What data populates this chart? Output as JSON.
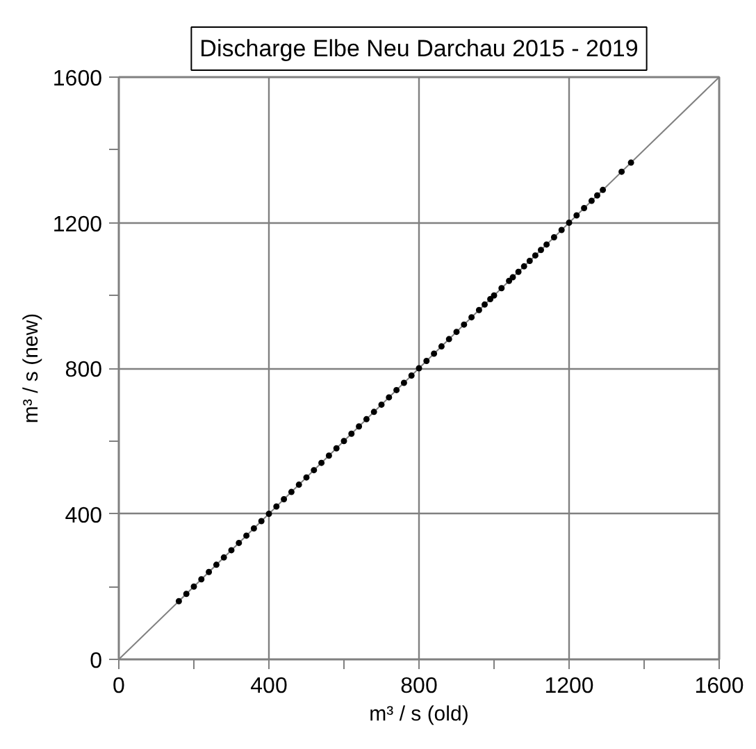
{
  "chart_data": {
    "type": "scatter",
    "title": "Discharge Elbe Neu Darchau 2015 - 2019",
    "xlabel": "m³ / s (old)",
    "ylabel": "m³ / s (new)",
    "xlim": [
      0,
      1600
    ],
    "ylim": [
      0,
      1600
    ],
    "xticks": [
      0,
      {
        "value": 200,
        "label": null
      },
      400,
      {
        "value": 600,
        "label": null
      },
      800,
      {
        "value": 1000,
        "label": null
      },
      1200,
      {
        "value": 1400,
        "label": null
      },
      1600
    ],
    "yticks": [
      0,
      {
        "value": 200,
        "label": null
      },
      400,
      {
        "value": 600,
        "label": null
      },
      800,
      {
        "value": 1000,
        "label": null
      },
      1200,
      {
        "value": 1400,
        "label": null
      },
      1600
    ],
    "grid": true,
    "marker": "circle",
    "series": [
      {
        "type": "line",
        "marker": "none",
        "color": "#808080",
        "x": [
          0,
          1600
        ],
        "values": [
          0,
          1600
        ]
      },
      {
        "color": "#000000",
        "x": [
          160,
          180,
          200,
          220,
          240,
          260,
          280,
          300,
          320,
          340,
          360,
          380,
          400,
          420,
          440,
          460,
          480,
          500,
          520,
          540,
          560,
          580,
          600,
          620,
          640,
          660,
          680,
          700,
          720,
          740,
          760,
          780,
          800,
          820,
          840,
          860,
          880,
          900,
          920,
          940,
          960,
          975,
          990,
          1000,
          1020,
          1040,
          1050,
          1065,
          1080,
          1095,
          1110,
          1125,
          1140,
          1160,
          1180,
          1200,
          1220,
          1240,
          1260,
          1275,
          1290,
          1340,
          1365
        ],
        "values": [
          160,
          180,
          200,
          220,
          240,
          260,
          280,
          300,
          320,
          340,
          360,
          380,
          400,
          420,
          440,
          460,
          480,
          500,
          520,
          540,
          560,
          580,
          600,
          620,
          640,
          660,
          680,
          700,
          720,
          740,
          760,
          780,
          800,
          820,
          840,
          860,
          880,
          900,
          920,
          940,
          960,
          975,
          990,
          1000,
          1020,
          1040,
          1050,
          1065,
          1080,
          1095,
          1110,
          1125,
          1140,
          1160,
          1180,
          1200,
          1220,
          1240,
          1260,
          1275,
          1290,
          1340,
          1365
        ]
      }
    ]
  }
}
